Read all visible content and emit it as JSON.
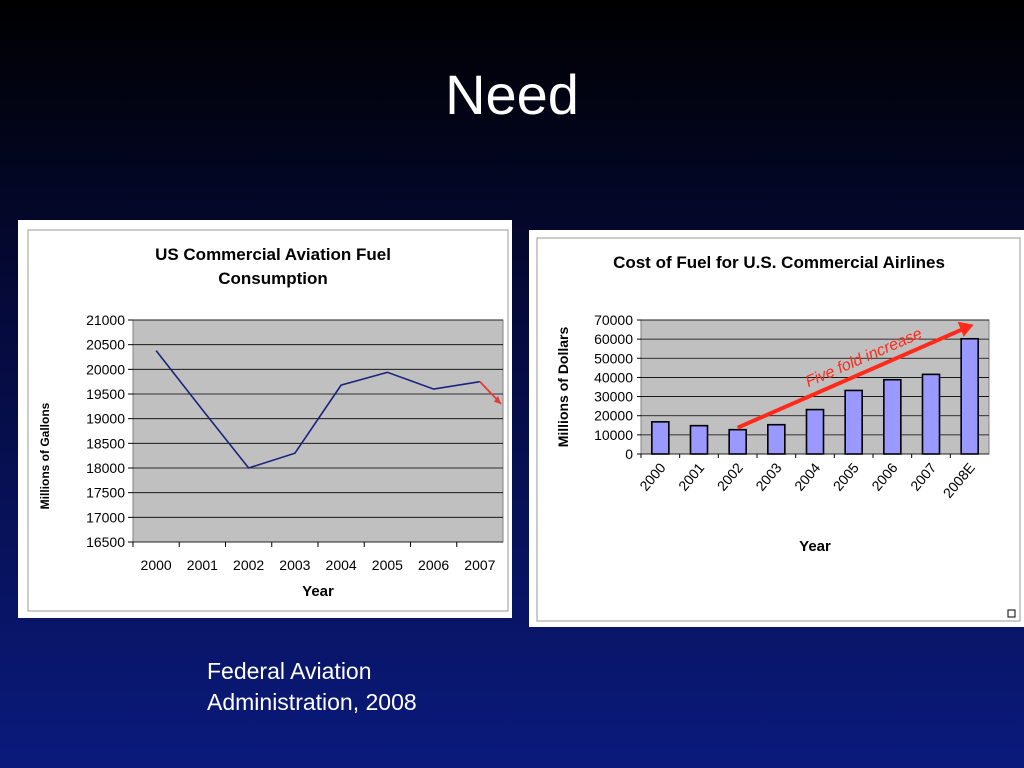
{
  "slide": {
    "title": "Need",
    "source_line1": "Federal Aviation",
    "source_line2": "Administration, 2008"
  },
  "chart_data": [
    {
      "type": "line",
      "title_line1": "US Commercial Aviation Fuel",
      "title_line2": "Consumption",
      "xlabel": "Year",
      "ylabel": "Millions of Gallons",
      "categories": [
        "2000",
        "2001",
        "2002",
        "2003",
        "2004",
        "2005",
        "2006",
        "2007"
      ],
      "series": [
        {
          "values": [
            20380,
            19180,
            18000,
            18300,
            19680,
            19940,
            19600,
            19750
          ],
          "color": "#1a237e"
        }
      ],
      "extension": {
        "from_value": 19750,
        "to_value": 19300,
        "color": "#e53935"
      },
      "ylim": [
        16500,
        21000
      ],
      "yticks": [
        "16500",
        "17000",
        "17500",
        "18000",
        "18500",
        "19000",
        "19500",
        "20000",
        "20500",
        "21000"
      ],
      "grid": true,
      "plot_bg": "#c0c0c0"
    },
    {
      "type": "bar",
      "title": "Cost of Fuel for U.S. Commercial Airlines",
      "xlabel": "Year",
      "ylabel": "Millions of Dollars",
      "categories": [
        "2000",
        "2001",
        "2002",
        "2003",
        "2004",
        "2005",
        "2006",
        "2007",
        "2008E"
      ],
      "series": [
        {
          "values": [
            16800,
            14800,
            12700,
            15300,
            23200,
            33200,
            38800,
            41600,
            60200
          ],
          "color": "#9999ff"
        }
      ],
      "ylim": [
        0,
        70000
      ],
      "yticks": [
        "0",
        "10000",
        "20000",
        "30000",
        "40000",
        "50000",
        "60000",
        "70000"
      ],
      "grid": true,
      "plot_bg": "#c0c0c0",
      "annotation": {
        "text": "Five fold increase",
        "color": "#ff2a1a"
      }
    }
  ]
}
